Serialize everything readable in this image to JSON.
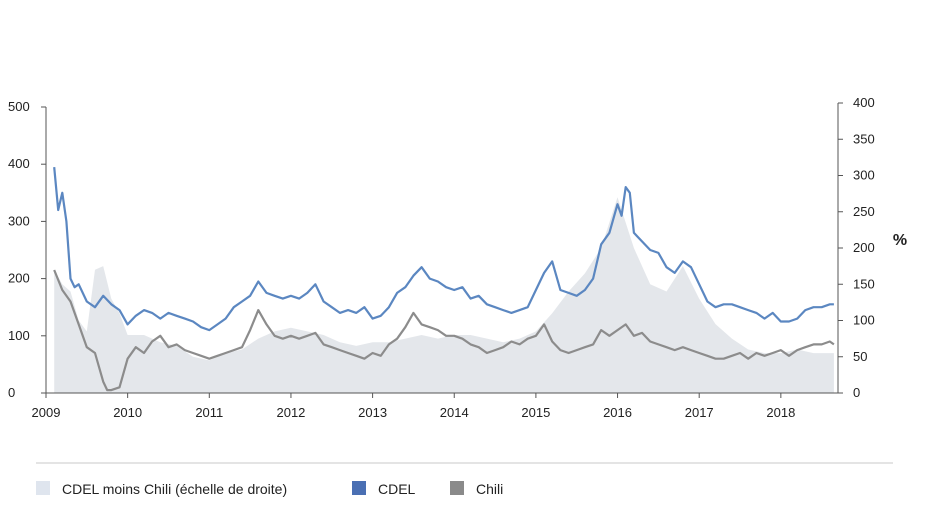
{
  "chart_data": {
    "type": "line",
    "title": "",
    "xlabel": "",
    "ylabel_left": "",
    "ylabel_right": "%",
    "x_tick_labels": [
      "2009",
      "2010",
      "2011",
      "2012",
      "2013",
      "2014",
      "2015",
      "2016",
      "2017",
      "2018"
    ],
    "x_range": [
      2009.0,
      2018.7
    ],
    "y_left_ticks": [
      "0",
      "100",
      "200",
      "300",
      "400",
      "500"
    ],
    "y_left_range": [
      0,
      500
    ],
    "y_right_ticks": [
      "0",
      "50",
      "100",
      "150",
      "200",
      "250",
      "300",
      "350",
      "400"
    ],
    "y_right_range": [
      0,
      400
    ],
    "grid": false,
    "legend_position": "bottom",
    "series": [
      {
        "name": "CDEL moins Chili (échelle de droite)",
        "kind": "area",
        "axis": "right",
        "color": "#e4e7eb",
        "x": [
          2009.1,
          2009.2,
          2009.3,
          2009.4,
          2009.5,
          2009.6,
          2009.7,
          2009.8,
          2009.9,
          2010.0,
          2010.2,
          2010.4,
          2010.6,
          2010.8,
          2011.0,
          2011.2,
          2011.4,
          2011.6,
          2011.8,
          2012.0,
          2012.2,
          2012.4,
          2012.6,
          2012.8,
          2013.0,
          2013.2,
          2013.4,
          2013.6,
          2013.8,
          2014.0,
          2014.2,
          2014.4,
          2014.6,
          2014.8,
          2015.0,
          2015.2,
          2015.4,
          2015.6,
          2015.8,
          2016.0,
          2016.2,
          2016.4,
          2016.6,
          2016.8,
          2017.0,
          2017.2,
          2017.4,
          2017.6,
          2017.8,
          2018.0,
          2018.2,
          2018.4,
          2018.65
        ],
        "values": [
          170,
          150,
          140,
          100,
          85,
          170,
          175,
          130,
          110,
          80,
          80,
          70,
          65,
          50,
          45,
          55,
          60,
          75,
          85,
          90,
          85,
          80,
          70,
          65,
          70,
          70,
          75,
          80,
          75,
          80,
          80,
          75,
          70,
          75,
          85,
          110,
          140,
          165,
          200,
          270,
          200,
          150,
          140,
          175,
          130,
          95,
          75,
          60,
          55,
          55,
          60,
          55,
          55
        ]
      },
      {
        "name": "CDEL",
        "kind": "line",
        "axis": "left",
        "color": "#5b87c1",
        "x": [
          2009.1,
          2009.15,
          2009.2,
          2009.25,
          2009.3,
          2009.35,
          2009.4,
          2009.5,
          2009.6,
          2009.7,
          2009.8,
          2009.9,
          2010.0,
          2010.1,
          2010.2,
          2010.3,
          2010.4,
          2010.5,
          2010.6,
          2010.7,
          2010.8,
          2010.9,
          2011.0,
          2011.1,
          2011.2,
          2011.3,
          2011.4,
          2011.5,
          2011.6,
          2011.7,
          2011.8,
          2011.9,
          2012.0,
          2012.1,
          2012.2,
          2012.3,
          2012.4,
          2012.5,
          2012.6,
          2012.7,
          2012.8,
          2012.9,
          2013.0,
          2013.1,
          2013.2,
          2013.3,
          2013.4,
          2013.5,
          2013.6,
          2013.7,
          2013.8,
          2013.9,
          2014.0,
          2014.1,
          2014.2,
          2014.3,
          2014.4,
          2014.5,
          2014.6,
          2014.7,
          2014.8,
          2014.9,
          2015.0,
          2015.1,
          2015.2,
          2015.3,
          2015.4,
          2015.5,
          2015.6,
          2015.7,
          2015.8,
          2015.9,
          2016.0,
          2016.05,
          2016.1,
          2016.15,
          2016.2,
          2016.3,
          2016.4,
          2016.5,
          2016.6,
          2016.7,
          2016.8,
          2016.9,
          2017.0,
          2017.1,
          2017.2,
          2017.3,
          2017.4,
          2017.5,
          2017.6,
          2017.7,
          2017.8,
          2017.9,
          2018.0,
          2018.1,
          2018.2,
          2018.3,
          2018.4,
          2018.5,
          2018.6,
          2018.65
        ],
        "values": [
          395,
          320,
          350,
          300,
          200,
          185,
          190,
          160,
          150,
          170,
          155,
          145,
          120,
          135,
          145,
          140,
          130,
          140,
          135,
          130,
          125,
          115,
          110,
          120,
          130,
          150,
          160,
          170,
          195,
          175,
          170,
          165,
          170,
          165,
          175,
          190,
          160,
          150,
          140,
          145,
          140,
          150,
          130,
          135,
          150,
          175,
          185,
          205,
          220,
          200,
          195,
          185,
          180,
          185,
          165,
          170,
          155,
          150,
          145,
          140,
          145,
          150,
          180,
          210,
          230,
          180,
          175,
          170,
          180,
          200,
          260,
          280,
          330,
          310,
          360,
          350,
          280,
          265,
          250,
          245,
          220,
          210,
          230,
          220,
          190,
          160,
          150,
          155,
          155,
          150,
          145,
          140,
          130,
          140,
          125,
          125,
          130,
          145,
          150,
          150,
          155,
          155
        ]
      },
      {
        "name": "Chili",
        "kind": "line",
        "axis": "left",
        "color": "#8c8c8c",
        "x": [
          2009.1,
          2009.2,
          2009.3,
          2009.4,
          2009.5,
          2009.6,
          2009.7,
          2009.75,
          2009.8,
          2009.9,
          2010.0,
          2010.1,
          2010.2,
          2010.3,
          2010.4,
          2010.5,
          2010.6,
          2010.7,
          2010.8,
          2010.9,
          2011.0,
          2011.1,
          2011.2,
          2011.3,
          2011.4,
          2011.5,
          2011.6,
          2011.7,
          2011.8,
          2011.9,
          2012.0,
          2012.1,
          2012.2,
          2012.3,
          2012.4,
          2012.5,
          2012.6,
          2012.7,
          2012.8,
          2012.9,
          2013.0,
          2013.1,
          2013.2,
          2013.3,
          2013.4,
          2013.5,
          2013.6,
          2013.7,
          2013.8,
          2013.9,
          2014.0,
          2014.1,
          2014.2,
          2014.3,
          2014.4,
          2014.5,
          2014.6,
          2014.7,
          2014.8,
          2014.9,
          2015.0,
          2015.1,
          2015.2,
          2015.3,
          2015.4,
          2015.5,
          2015.6,
          2015.7,
          2015.8,
          2015.9,
          2016.0,
          2016.1,
          2016.2,
          2016.3,
          2016.4,
          2016.5,
          2016.6,
          2016.7,
          2016.8,
          2016.9,
          2017.0,
          2017.1,
          2017.2,
          2017.3,
          2017.4,
          2017.5,
          2017.6,
          2017.7,
          2017.8,
          2017.9,
          2018.0,
          2018.1,
          2018.2,
          2018.3,
          2018.4,
          2018.5,
          2018.6,
          2018.65
        ],
        "values": [
          215,
          180,
          160,
          120,
          80,
          70,
          20,
          5,
          5,
          10,
          60,
          80,
          70,
          90,
          100,
          80,
          85,
          75,
          70,
          65,
          60,
          65,
          70,
          75,
          80,
          110,
          145,
          120,
          100,
          95,
          100,
          95,
          100,
          105,
          85,
          80,
          75,
          70,
          65,
          60,
          70,
          65,
          85,
          95,
          115,
          140,
          120,
          115,
          110,
          100,
          100,
          95,
          85,
          80,
          70,
          75,
          80,
          90,
          85,
          95,
          100,
          120,
          90,
          75,
          70,
          75,
          80,
          85,
          110,
          100,
          110,
          120,
          100,
          105,
          90,
          85,
          80,
          75,
          80,
          75,
          70,
          65,
          60,
          60,
          65,
          70,
          60,
          70,
          65,
          70,
          75,
          65,
          75,
          80,
          85,
          85,
          90,
          85
        ]
      }
    ]
  },
  "legend": {
    "items": [
      {
        "label": "CDEL moins Chili (échelle de droite)",
        "color": "#dfe5ee"
      },
      {
        "label": "CDEL",
        "color": "#4a6fb3"
      },
      {
        "label": "Chili",
        "color": "#8a8a8a"
      }
    ]
  }
}
